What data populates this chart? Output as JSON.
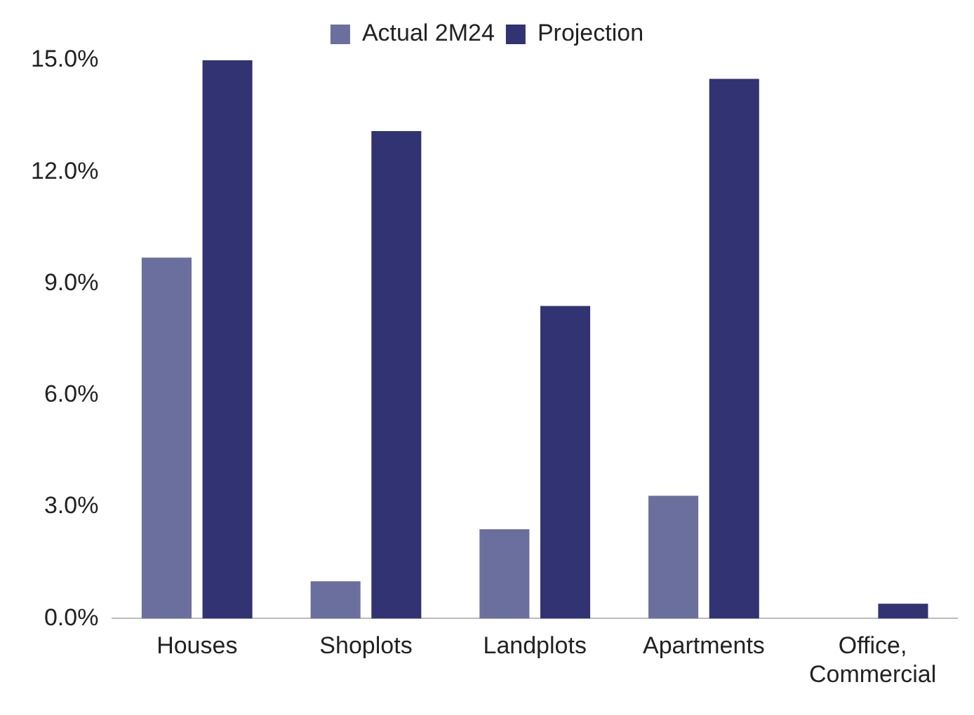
{
  "chart_data": {
    "type": "bar",
    "categories": [
      "Houses",
      "Shoplots",
      "Landplots",
      "Apartments",
      "Office,\nCommercial"
    ],
    "series": [
      {
        "name": "Actual 2M24",
        "color": "#6b6f9e",
        "values": [
          9.7,
          1.0,
          2.4,
          3.3,
          0
        ]
      },
      {
        "name": "Projection",
        "color": "#313372",
        "values": [
          15.0,
          13.1,
          8.4,
          14.5,
          0.4
        ]
      }
    ],
    "ylim": [
      0,
      15
    ],
    "yticks": [
      {
        "value": 0,
        "label": "0.0%"
      },
      {
        "value": 3,
        "label": "3.0%"
      },
      {
        "value": 6,
        "label": "6.0%"
      },
      {
        "value": 9,
        "label": "9.0%"
      },
      {
        "value": 12,
        "label": "12.0%"
      },
      {
        "value": 15,
        "label": "15.0%"
      }
    ],
    "grid": false,
    "legend": "top"
  }
}
